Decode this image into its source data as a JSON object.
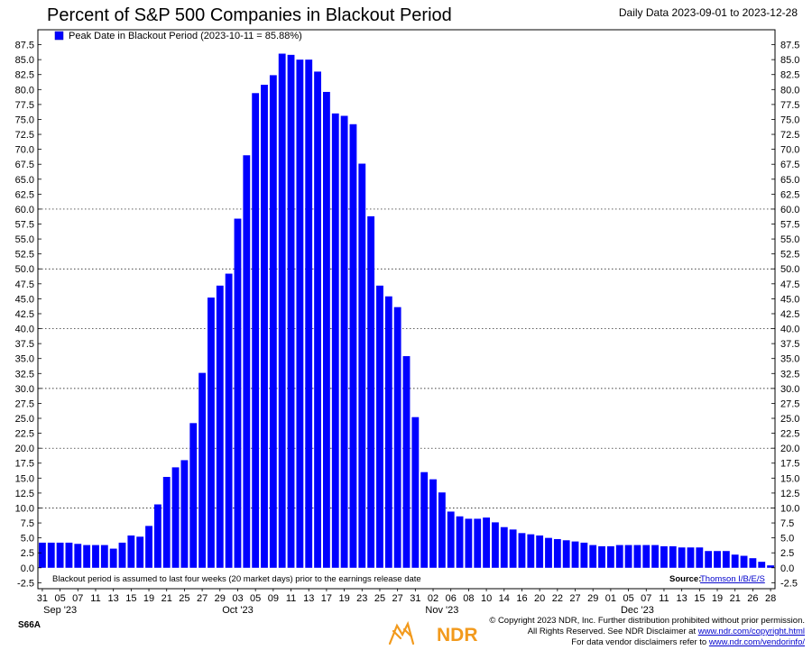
{
  "header": {
    "title": "Percent of S&P 500 Companies in Blackout Period",
    "date_range": "Daily Data 2023-09-01 to 2023-12-28"
  },
  "footer": {
    "code": "S66A",
    "logo_text": "NDR",
    "copyright_line1": "© Copyright 2023 NDR, Inc. Further distribution prohibited without prior permission.",
    "copyright_line2_prefix": "All Rights Reserved. See NDR Disclaimer at ",
    "copyright_line2_link": "www.ndr.com/copyright.html",
    "copyright_line3_prefix": "For data vendor disclaimers refer to ",
    "copyright_line3_link": "www.ndr.com/vendorinfo/"
  },
  "chart_data": {
    "type": "bar",
    "color": "#0000ff",
    "legend": {
      "label": "Peak Date in Blackout Period (2023-10-11 = 85.88%)",
      "placement": "top-left"
    },
    "note": "Blackout period is assumed to last four weeks (20 market days) prior to the earnings release date",
    "source_label": "Source:",
    "source_link": "Thomson I/B/E/S",
    "ylim": [
      -3.5,
      90
    ],
    "y_ticks": [
      "-2.5",
      "0.0",
      "2.5",
      "5.0",
      "7.5",
      "10.0",
      "12.5",
      "15.0",
      "17.5",
      "20.0",
      "22.5",
      "25.0",
      "27.5",
      "30.0",
      "32.5",
      "35.0",
      "37.5",
      "40.0",
      "42.5",
      "45.0",
      "47.5",
      "50.0",
      "52.5",
      "55.0",
      "57.5",
      "60.0",
      "62.5",
      "65.0",
      "67.5",
      "70.0",
      "72.5",
      "75.0",
      "77.5",
      "80.0",
      "82.5",
      "85.0",
      "87.5"
    ],
    "dotted_gridlines": [
      10,
      20,
      30,
      40,
      50,
      60
    ],
    "x_tick_labels": [
      "31",
      "05",
      "07",
      "11",
      "13",
      "15",
      "19",
      "21",
      "25",
      "27",
      "29",
      "03",
      "05",
      "09",
      "11",
      "13",
      "17",
      "19",
      "23",
      "25",
      "27",
      "31",
      "02",
      "06",
      "08",
      "10",
      "14",
      "16",
      "20",
      "22",
      "27",
      "29",
      "01",
      "05",
      "07",
      "11",
      "13",
      "15",
      "19",
      "21",
      "26",
      "28"
    ],
    "month_labels": [
      {
        "label": "Sep '23",
        "index": 2
      },
      {
        "label": "Oct '23",
        "index": 22
      },
      {
        "label": "Nov '23",
        "index": 45
      },
      {
        "label": "Dec '23",
        "index": 67
      }
    ],
    "values": [
      4.2,
      4.2,
      4.2,
      4.2,
      4.0,
      3.8,
      3.8,
      3.8,
      3.2,
      4.2,
      5.4,
      5.2,
      7.0,
      10.6,
      15.2,
      16.8,
      18.0,
      24.2,
      32.6,
      45.2,
      47.2,
      49.2,
      58.4,
      69.0,
      79.4,
      80.8,
      82.4,
      86.0,
      85.8,
      85.0,
      85.0,
      83.0,
      79.6,
      76.0,
      75.6,
      74.2,
      67.6,
      58.8,
      47.2,
      45.4,
      43.6,
      35.4,
      25.2,
      16.0,
      14.8,
      12.6,
      9.4,
      8.6,
      8.2,
      8.2,
      8.4,
      7.6,
      6.8,
      6.4,
      5.8,
      5.6,
      5.4,
      5.0,
      4.8,
      4.6,
      4.4,
      4.2,
      3.8,
      3.6,
      3.6,
      3.8,
      3.8,
      3.8,
      3.8,
      3.8,
      3.6,
      3.6,
      3.4,
      3.4,
      3.4,
      2.8,
      2.8,
      2.8,
      2.2,
      2.0,
      1.6,
      1.0,
      0.4
    ]
  }
}
